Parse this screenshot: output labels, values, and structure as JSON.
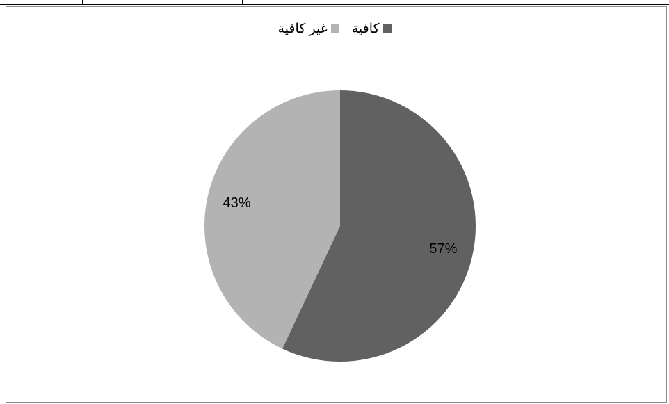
{
  "chart_data": {
    "type": "pie",
    "title": "",
    "legend_position": "top",
    "categories": [
      "كافية",
      "غير كافية"
    ],
    "values": [
      57,
      43
    ],
    "value_labels": [
      "57%",
      "43%"
    ],
    "colors": [
      "#616161",
      "#b3b3b3"
    ]
  }
}
